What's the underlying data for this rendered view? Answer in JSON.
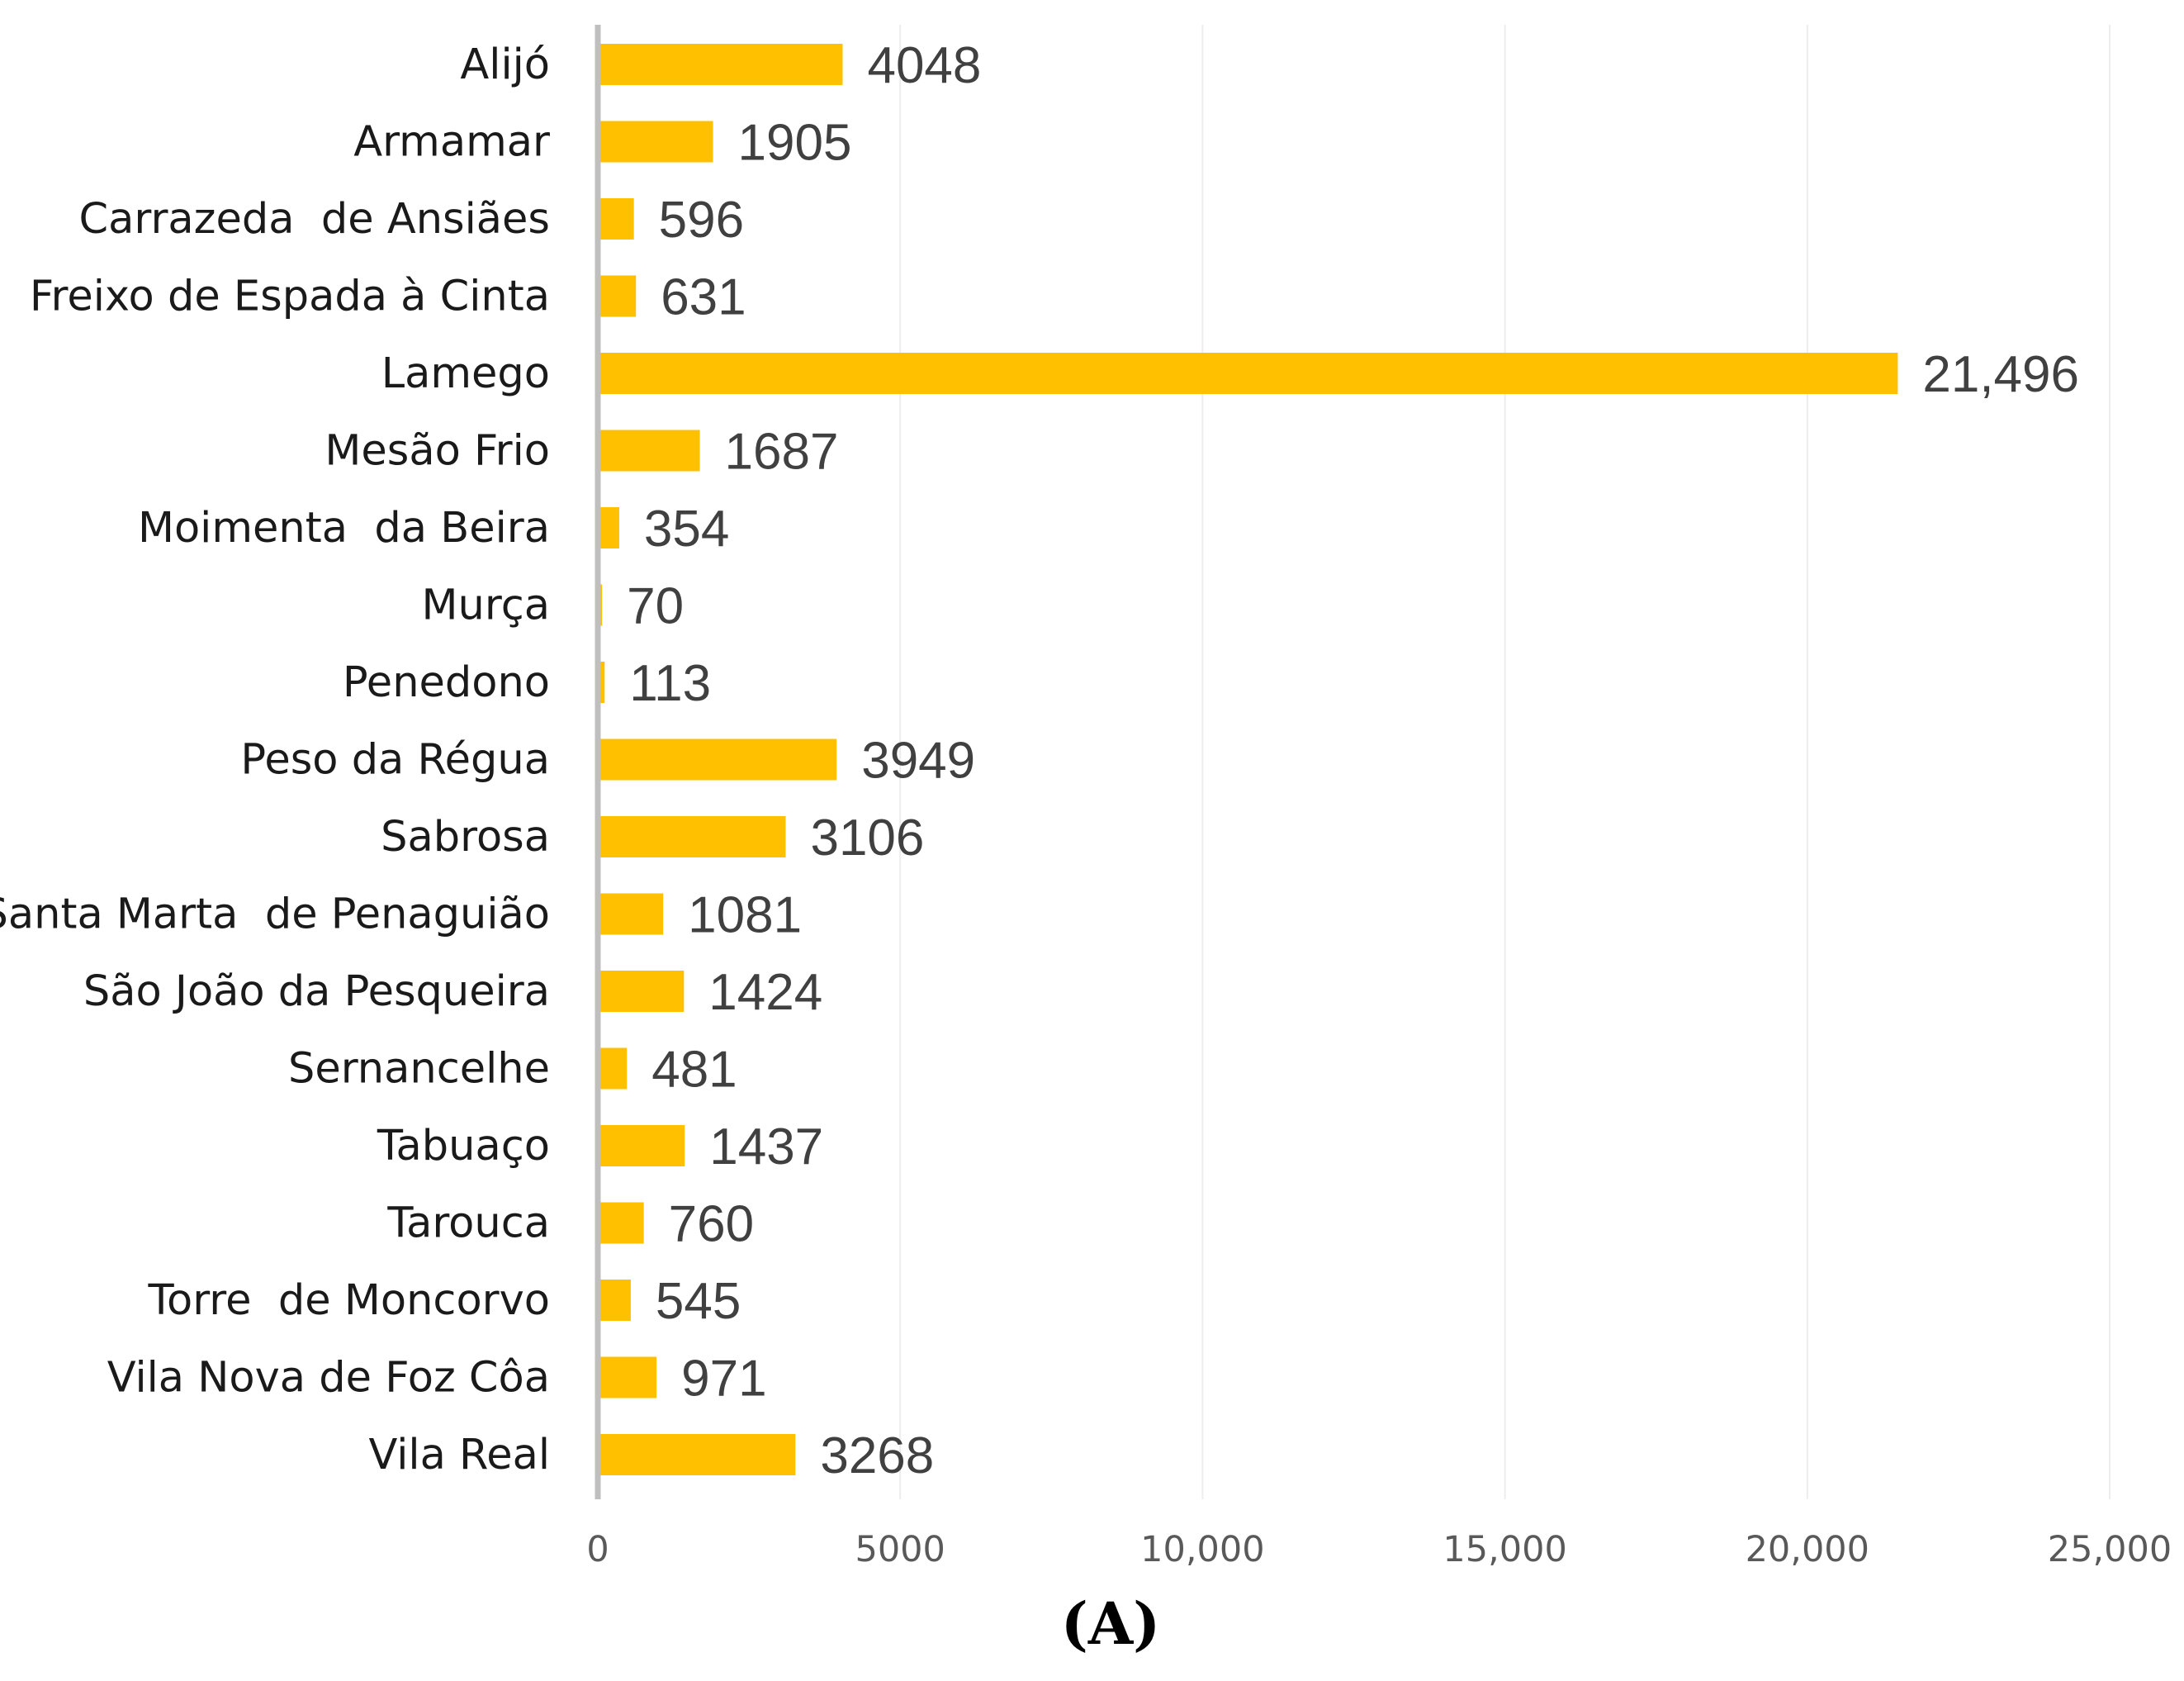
{
  "chart_data": {
    "type": "bar",
    "orientation": "horizontal",
    "categories": [
      "Alijó",
      "Armamar",
      "Carrazeda  de Ansiães",
      "Freixo de Espada à Cinta",
      "Lamego",
      "Mesão Frio",
      "Moimenta  da Beira",
      "Murça",
      "Penedono",
      "Peso da Régua",
      "Sabrosa",
      "Santa Marta  de Penaguião",
      "São João da Pesqueira",
      "Sernancelhe",
      "Tabuaço",
      "Tarouca",
      "Torre  de Moncorvo",
      "Vila Nova de Foz Côa",
      "Vila Real"
    ],
    "values": [
      4048,
      1905,
      596,
      631,
      21496,
      1687,
      354,
      70,
      113,
      3949,
      3106,
      1081,
      1424,
      481,
      1437,
      760,
      545,
      971,
      3268
    ],
    "value_labels": [
      "4048",
      "1905",
      "596",
      "631",
      "21,496",
      "1687",
      "354",
      "70",
      "113",
      "3949",
      "3106",
      "1081",
      "1424",
      "481",
      "1437",
      "760",
      "545",
      "971",
      "3268"
    ],
    "xlim": [
      0,
      25000
    ],
    "ticks": [
      0,
      5000,
      10000,
      15000,
      20000,
      25000
    ],
    "tick_labels": [
      "0",
      "5000",
      "10,000",
      "15,000",
      "20,000",
      "25,000"
    ],
    "grid": true,
    "bar_color": "#FFC000",
    "axis_color": "#BFBFBF",
    "grid_color": "#EDEDED",
    "title": "",
    "xlabel": "",
    "ylabel": "",
    "caption": "(A)"
  }
}
